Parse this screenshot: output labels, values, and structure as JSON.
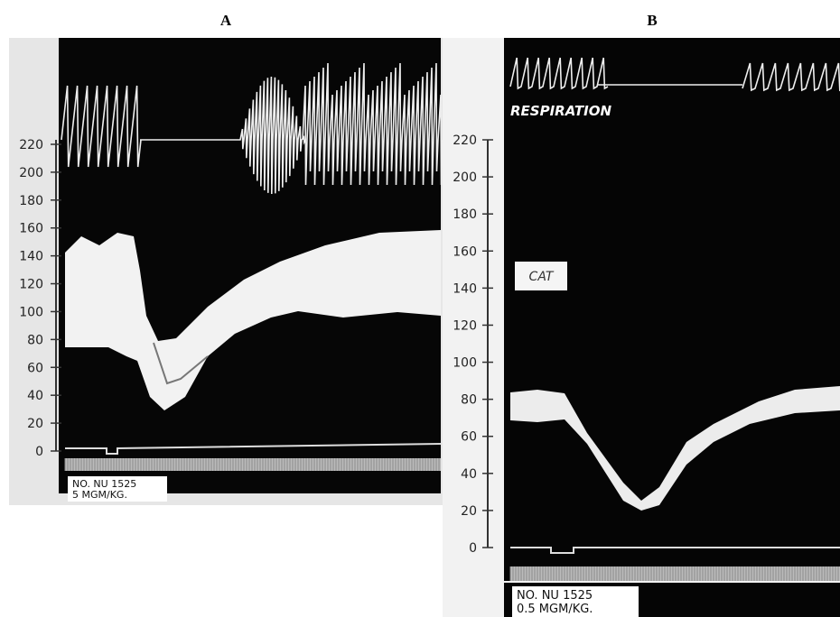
{
  "panels": [
    {
      "label": "A",
      "scale": [
        220,
        200,
        180,
        160,
        140,
        120,
        100,
        80,
        60,
        40,
        20,
        0
      ],
      "caption": [
        "NO. NU 1525",
        "5 MGM/KG."
      ]
    },
    {
      "label": "B",
      "annotations": [
        "RESPIRATION",
        "CAT"
      ],
      "scale": [
        220,
        200,
        180,
        160,
        140,
        120,
        100,
        80,
        60,
        40,
        20,
        0
      ],
      "caption": [
        "NO. NU 1525",
        "0.5 MGM/KG."
      ]
    }
  ]
}
